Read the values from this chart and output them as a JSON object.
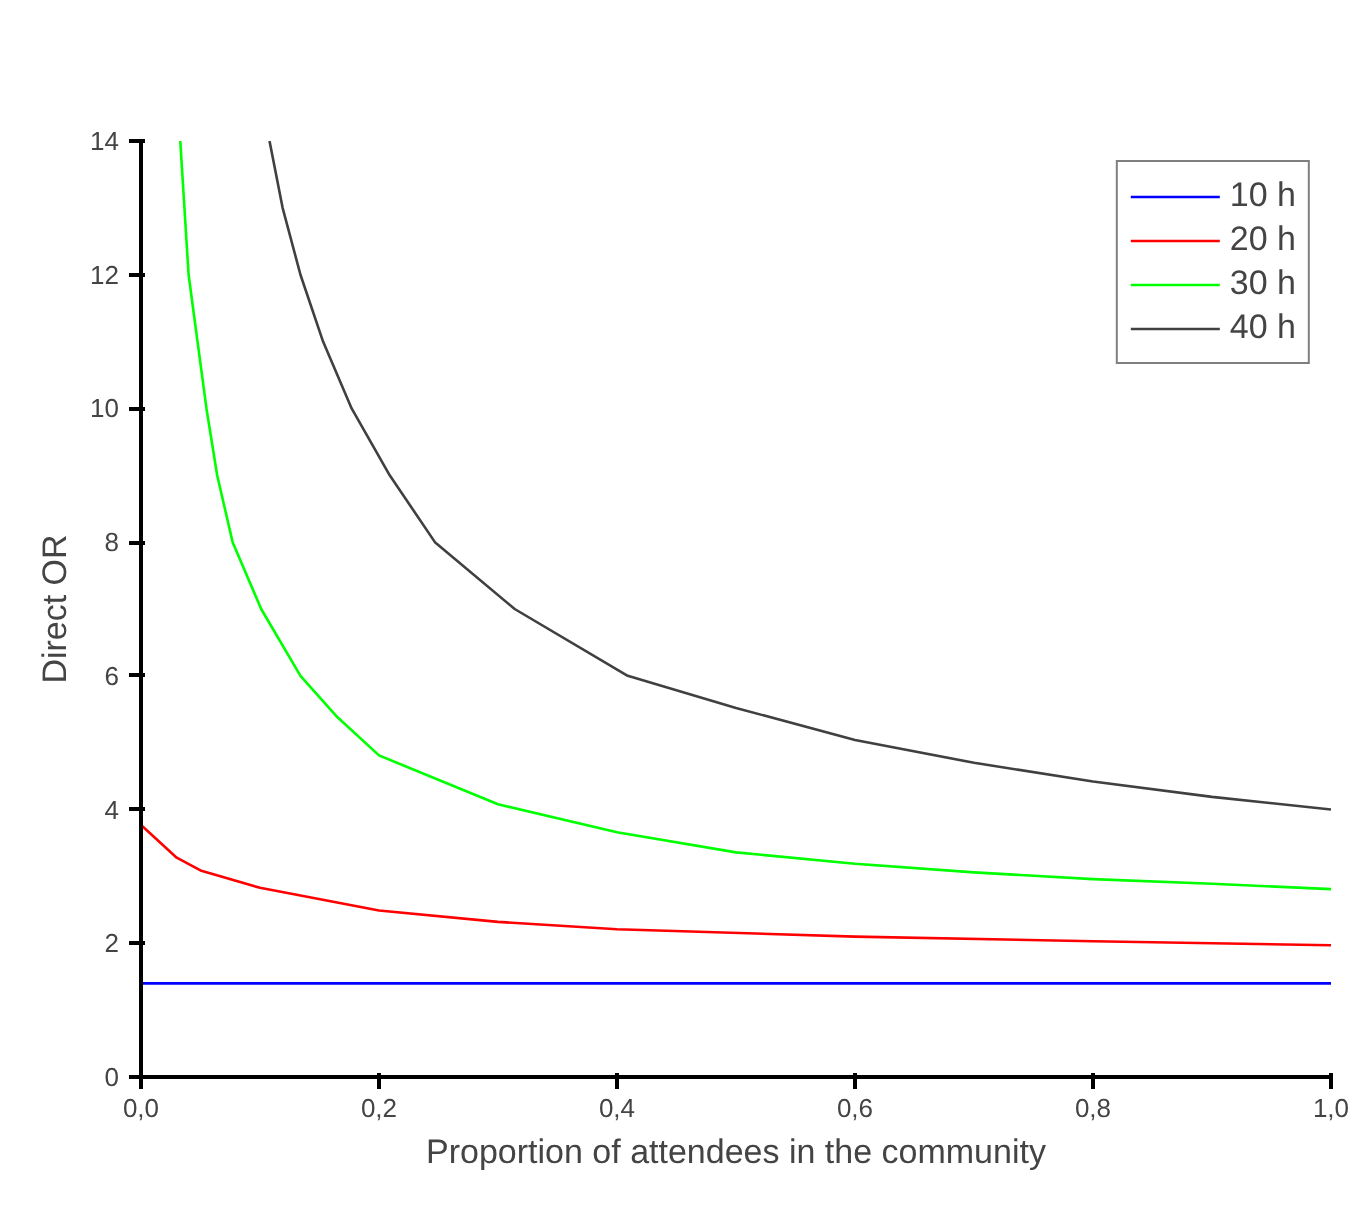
{
  "chart_data": {
    "type": "line",
    "xlabel": "Proportion of attendees in the community",
    "ylabel": "Direct OR",
    "xlim": [
      0,
      1
    ],
    "ylim": [
      0,
      14
    ],
    "xticks": [
      {
        "value": 0,
        "label": "0,0"
      },
      {
        "value": 0.2,
        "label": "0,2"
      },
      {
        "value": 0.4,
        "label": "0,4"
      },
      {
        "value": 0.6,
        "label": "0,6"
      },
      {
        "value": 0.8,
        "label": "0,8"
      },
      {
        "value": 1,
        "label": "1,0"
      }
    ],
    "yticks": [
      0,
      2,
      4,
      6,
      8,
      10,
      12,
      14
    ],
    "grid": false,
    "legend": "top right",
    "line_style": "solid",
    "marker": "none",
    "series": [
      {
        "name": "10 h",
        "color": "#0000ff",
        "x": [
          0,
          0.5,
          1
        ],
        "values": [
          1.4,
          1.4,
          1.4
        ]
      },
      {
        "name": "20 h",
        "color": "#ff0000",
        "x": [
          0,
          0.03,
          0.05,
          0.1,
          0.2,
          0.3,
          0.4,
          0.6,
          0.8,
          1
        ],
        "values": [
          3.77,
          3.28,
          3.09,
          2.83,
          2.49,
          2.32,
          2.21,
          2.1,
          2.03,
          1.97
        ]
      },
      {
        "name": "30 h",
        "color": "#00ff00",
        "x": [
          0.033,
          0.04,
          0.055,
          0.064,
          0.077,
          0.101,
          0.134,
          0.164,
          0.2,
          0.3,
          0.4,
          0.5,
          0.6,
          0.7,
          0.8,
          0.9,
          1
        ],
        "values": [
          14,
          12,
          10,
          9,
          8,
          7,
          6,
          5.4,
          4.81,
          4.08,
          3.66,
          3.36,
          3.19,
          3.06,
          2.96,
          2.89,
          2.81
        ]
      },
      {
        "name": "40 h",
        "color": "#404040",
        "x": [
          0.108,
          0.119,
          0.134,
          0.153,
          0.177,
          0.209,
          0.247,
          0.314,
          0.409,
          0.5,
          0.6,
          0.7,
          0.8,
          0.9,
          1
        ],
        "values": [
          14,
          13,
          12,
          11,
          10,
          9,
          8,
          7,
          6,
          5.52,
          5.04,
          4.7,
          4.42,
          4.19,
          4.0
        ]
      }
    ]
  }
}
